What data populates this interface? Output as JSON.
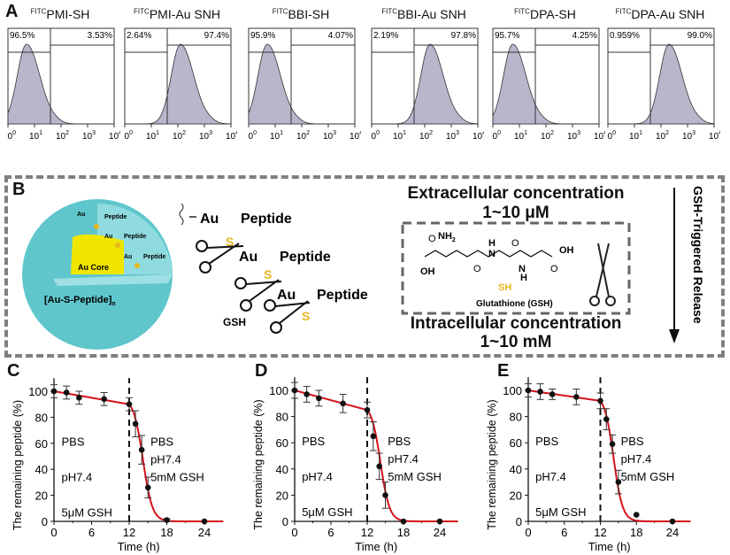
{
  "panel_labels": {
    "a": "A",
    "b": "B",
    "c": "C",
    "d": "D",
    "e": "E"
  },
  "panel_a": {
    "superscript": "FITC",
    "histograms": [
      {
        "title": "PMI-SH",
        "left_pct": "96.5%",
        "right_pct": "3.53%",
        "peak_log": 0.7,
        "gate_log": 1.6
      },
      {
        "title": "PMI-Au SNH",
        "left_pct": "2.64%",
        "right_pct": "97.4%",
        "peak_log": 2.1,
        "gate_log": 1.6
      },
      {
        "title": "BBI-SH",
        "left_pct": "95.9%",
        "right_pct": "4.07%",
        "peak_log": 0.7,
        "gate_log": 1.6
      },
      {
        "title": "BBI-Au SNH",
        "left_pct": "2.19%",
        "right_pct": "97.8%",
        "peak_log": 2.2,
        "gate_log": 1.6
      },
      {
        "title": "DPA-SH",
        "left_pct": "95.7%",
        "right_pct": "4.25%",
        "peak_log": 0.75,
        "gate_log": 1.6
      },
      {
        "title": "DPA-Au SNH",
        "left_pct": "0.959%",
        "right_pct": "99.0%",
        "peak_log": 2.3,
        "gate_log": 1.6
      }
    ],
    "x_ticks": [
      "0",
      "1",
      "2",
      "3",
      "4"
    ],
    "x_tick_base": "10",
    "colors": {
      "fill": "#b9b6cc",
      "line": "#333333"
    }
  },
  "panel_b": {
    "sphere_labels": {
      "au": "Au",
      "peptide": "Peptide",
      "core": "Au Core",
      "complex": "[Au-S-Peptide]",
      "subscript": "n"
    },
    "chain": {
      "au": "Au",
      "peptide": "Peptide",
      "s": "S",
      "gsh": "GSH"
    },
    "extracellular": {
      "title": "Extracellular concentration",
      "value": "1~10 μM"
    },
    "intracellular": {
      "title": "Intracellular concentration",
      "value": "1~10 mM"
    },
    "gsh_label": "Glutathione (GSH)",
    "molecule": {
      "nh2": "NH",
      "nh2_sub": "2",
      "oh": "OH",
      "o": "O",
      "h": "H",
      "n": "N",
      "s": "S",
      "sh": "SH"
    },
    "arrow_label": "GSH-Triggered Release",
    "colors": {
      "teal": "#5fc6cc",
      "core": "#f0e600",
      "sulfur": "#e8b520",
      "dash": "#808080"
    }
  },
  "chart_data": [
    {
      "type": "line",
      "panel": "C",
      "x": [
        0,
        2,
        4,
        8,
        12,
        13,
        14,
        15,
        18,
        24
      ],
      "y": [
        100,
        99,
        95,
        94,
        90,
        75,
        55,
        26,
        1,
        0
      ],
      "err": [
        5,
        5,
        5,
        5,
        5,
        10,
        11,
        8,
        1,
        0
      ],
      "xlabel": "Time (h)",
      "ylabel": "The remaining peptide (%)",
      "xlim": [
        0,
        27
      ],
      "ylim": [
        0,
        110
      ],
      "xticks": [
        "0",
        "6",
        "12",
        "18",
        "24"
      ],
      "yticks": [
        "0",
        "20",
        "40",
        "60",
        "80",
        "100"
      ],
      "divider_x": 12,
      "left_note": [
        "PBS",
        "pH7.4",
        "5μM GSH"
      ],
      "right_note": [
        "PBS",
        "pH7.4",
        "5mM GSH"
      ]
    },
    {
      "type": "line",
      "panel": "D",
      "x": [
        0,
        2,
        4,
        8,
        12,
        13,
        14,
        15,
        18,
        24
      ],
      "y": [
        100,
        97,
        94,
        90,
        85,
        65,
        42,
        20,
        0,
        0
      ],
      "err": [
        6,
        6,
        6,
        7,
        6,
        11,
        10,
        10,
        0,
        0
      ],
      "xlabel": "Time (h)",
      "ylabel": "The remaining peptide (%)",
      "xlim": [
        0,
        27
      ],
      "ylim": [
        0,
        110
      ],
      "xticks": [
        "0",
        "6",
        "12",
        "18",
        "24"
      ],
      "yticks": [
        "0",
        "20",
        "40",
        "60",
        "80",
        "100"
      ],
      "divider_x": 12,
      "left_note": [
        "PBS",
        "pH7.4",
        "5μM GSH"
      ],
      "right_note": [
        "PBS",
        "pH7.4",
        "5mM GSH"
      ]
    },
    {
      "type": "line",
      "panel": "E",
      "x": [
        0,
        2,
        4,
        8,
        12,
        13,
        14,
        15,
        18,
        24
      ],
      "y": [
        100,
        99,
        97,
        95,
        92,
        78,
        59,
        30,
        5,
        0
      ],
      "err": [
        5,
        6,
        4,
        6,
        6,
        8,
        7,
        9,
        0,
        0
      ],
      "xlabel": "Time (h)",
      "ylabel": "The remaining peptide (%)",
      "xlim": [
        0,
        27
      ],
      "ylim": [
        0,
        110
      ],
      "xticks": [
        "0",
        "6",
        "12",
        "18",
        "24"
      ],
      "yticks": [
        "0",
        "20",
        "40",
        "60",
        "80",
        "100"
      ],
      "divider_x": 12,
      "left_note": [
        "PBS",
        "pH7.4",
        "5μM GSH"
      ],
      "right_note": [
        "PBS",
        "pH7.4",
        "5mM GSH"
      ]
    }
  ],
  "line_color": "#d4121b"
}
